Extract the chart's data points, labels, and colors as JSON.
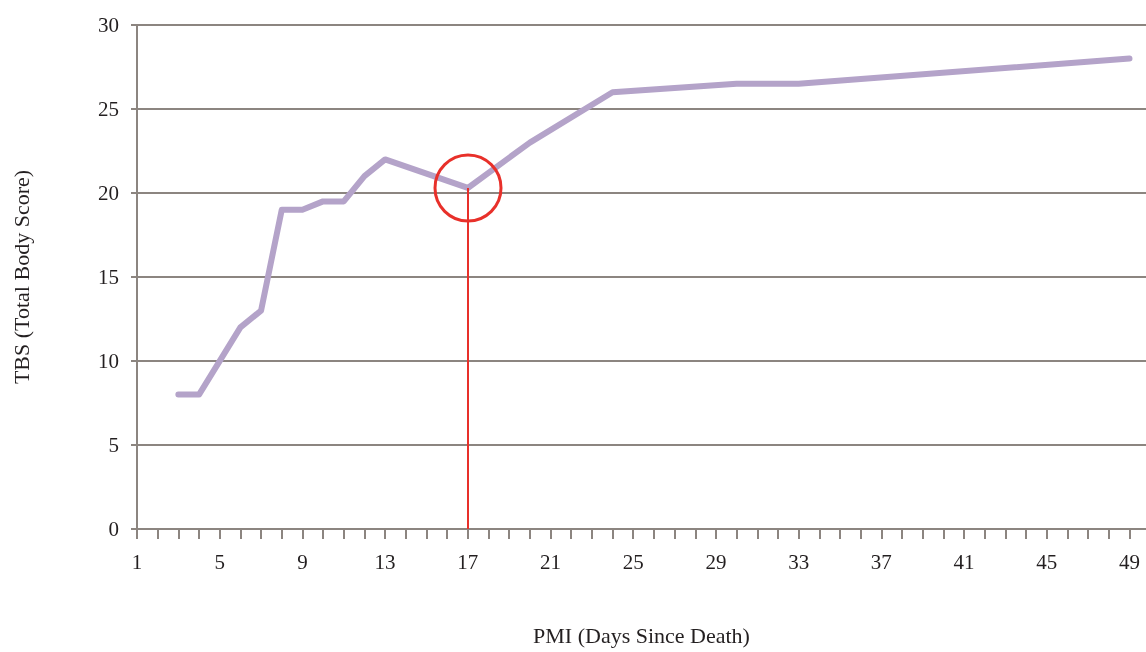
{
  "chart_data": {
    "type": "line",
    "xlabel": "PMI (Days Since Death)",
    "ylabel": "TBS (Total Body Score)",
    "x": [
      3,
      4,
      6,
      7,
      8,
      9,
      10,
      11,
      12,
      13,
      17,
      20,
      24,
      30,
      33,
      49
    ],
    "series": [
      {
        "color": "#b4a3c9",
        "values": [
          8,
          8,
          12,
          13,
          19,
          19,
          19.5,
          19.5,
          21,
          22,
          20.3,
          23,
          26,
          26.5,
          26.5,
          28
        ]
      }
    ],
    "xlim": [
      1,
      49.8
    ],
    "xticks": [
      1,
      {
        "value": 2,
        "label": null
      },
      {
        "value": 3,
        "label": null
      },
      {
        "value": 4,
        "label": null
      },
      5,
      {
        "value": 6,
        "label": null
      },
      {
        "value": 7,
        "label": null
      },
      {
        "value": 8,
        "label": null
      },
      9,
      {
        "value": 10,
        "label": null
      },
      {
        "value": 11,
        "label": null
      },
      {
        "value": 12,
        "label": null
      },
      13,
      {
        "value": 14,
        "label": null
      },
      {
        "value": 15,
        "label": null
      },
      {
        "value": 16,
        "label": null
      },
      17,
      {
        "value": 18,
        "label": null
      },
      {
        "value": 19,
        "label": null
      },
      {
        "value": 20,
        "label": null
      },
      21,
      {
        "value": 22,
        "label": null
      },
      {
        "value": 23,
        "label": null
      },
      {
        "value": 24,
        "label": null
      },
      25,
      {
        "value": 26,
        "label": null
      },
      {
        "value": 27,
        "label": null
      },
      {
        "value": 28,
        "label": null
      },
      29,
      {
        "value": 30,
        "label": null
      },
      {
        "value": 31,
        "label": null
      },
      {
        "value": 32,
        "label": null
      },
      33,
      {
        "value": 34,
        "label": null
      },
      {
        "value": 35,
        "label": null
      },
      {
        "value": 36,
        "label": null
      },
      37,
      {
        "value": 38,
        "label": null
      },
      {
        "value": 39,
        "label": null
      },
      {
        "value": 40,
        "label": null
      },
      41,
      {
        "value": 42,
        "label": null
      },
      {
        "value": 43,
        "label": null
      },
      {
        "value": 44,
        "label": null
      },
      45,
      {
        "value": 46,
        "label": null
      },
      {
        "value": 47,
        "label": null
      },
      {
        "value": 48,
        "label": null
      },
      49
    ],
    "ylim": [
      0,
      30
    ],
    "yticks": [
      0,
      5,
      10,
      15,
      20,
      25,
      30
    ],
    "grid": "y",
    "marker": "none",
    "line_style": "solid",
    "ref_lines": [
      {
        "axis": "x",
        "value": 17,
        "color": "#e8302a"
      }
    ]
  }
}
